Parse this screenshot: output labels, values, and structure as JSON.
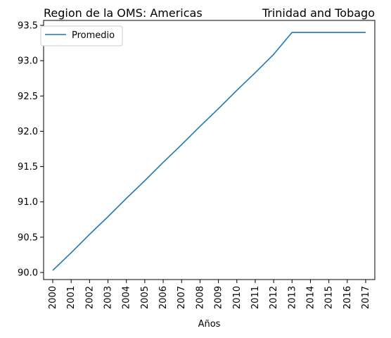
{
  "chart_data": {
    "type": "line",
    "title_left": "Region de la OMS: Americas",
    "title_right": "Trinidad and Tobago",
    "xlabel": "Años",
    "ylabel": "",
    "x": [
      "2000",
      "2001",
      "2002",
      "2003",
      "2004",
      "2005",
      "2006",
      "2007",
      "2008",
      "2009",
      "2010",
      "2011",
      "2012",
      "2013",
      "2014",
      "2015",
      "2016",
      "2017"
    ],
    "xlim": [
      2000,
      2017
    ],
    "ylim": [
      89.9,
      93.57
    ],
    "y_ticks": [
      "90.0",
      "90.5",
      "91.0",
      "91.5",
      "92.0",
      "92.5",
      "93.0",
      "93.5"
    ],
    "series": [
      {
        "name": "Promedio",
        "color": "#1f77b4",
        "values": [
          90.03,
          90.28,
          90.54,
          90.79,
          91.05,
          91.3,
          91.56,
          91.81,
          92.07,
          92.32,
          92.58,
          92.83,
          93.09,
          93.4,
          93.4,
          93.4,
          93.4,
          93.4
        ]
      }
    ],
    "legend": "top-left",
    "grid": false
  }
}
